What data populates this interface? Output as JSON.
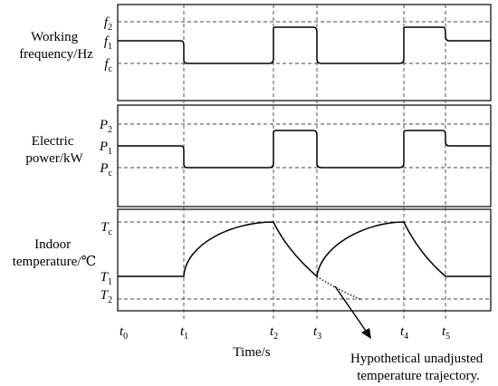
{
  "panels": [
    {
      "id": "frequency",
      "label_lines": [
        "Working",
        "frequency/Hz"
      ],
      "levels": [
        {
          "base": "f",
          "sub": "2"
        },
        {
          "base": "f",
          "sub": "1"
        },
        {
          "base": "f",
          "sub": "c"
        }
      ]
    },
    {
      "id": "power",
      "label_lines": [
        "Electric",
        "power/kW"
      ],
      "levels": [
        {
          "base": "P",
          "sub": "2"
        },
        {
          "base": "P",
          "sub": "1"
        },
        {
          "base": "P",
          "sub": "c"
        }
      ]
    },
    {
      "id": "temperature",
      "label_lines": [
        "Indoor",
        "temperature/℃"
      ],
      "levels": [
        {
          "base": "T",
          "sub": "c"
        },
        {
          "base": "T",
          "sub": "1"
        },
        {
          "base": "T",
          "sub": "2"
        }
      ]
    }
  ],
  "time_ticks": [
    {
      "base": "t",
      "sub": "0"
    },
    {
      "base": "t",
      "sub": "1"
    },
    {
      "base": "t",
      "sub": "2"
    },
    {
      "base": "t",
      "sub": "3"
    },
    {
      "base": "t",
      "sub": "4"
    },
    {
      "base": "t",
      "sub": "5"
    }
  ],
  "x_axis_label": "Time/s",
  "annotation_lines": [
    "Hypothetical unadjusted",
    "temperature trajectory."
  ]
}
